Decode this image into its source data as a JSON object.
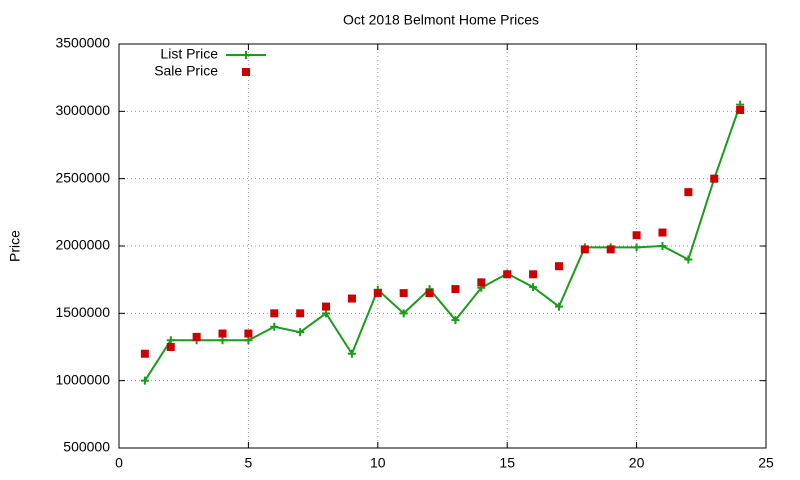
{
  "chart_data": {
    "type": "line",
    "title": "Oct 2018 Belmont Home Prices",
    "y_label": "Price",
    "x": [
      1,
      2,
      3,
      4,
      5,
      6,
      7,
      8,
      9,
      10,
      11,
      12,
      13,
      14,
      15,
      16,
      17,
      18,
      19,
      20,
      21,
      22,
      23,
      24
    ],
    "series": [
      {
        "name": "List Price",
        "color": "#1a9c1a",
        "marker": "plus",
        "line": true,
        "values": [
          1000000,
          1300000,
          1300000,
          1300000,
          1300000,
          1400000,
          1360000,
          1500000,
          1200000,
          1675000,
          1500000,
          1680000,
          1450000,
          1690000,
          1795000,
          1695000,
          1550000,
          1990000,
          1990000,
          1990000,
          2000000,
          1900000,
          2500000,
          3050000
        ]
      },
      {
        "name": "Sale Price",
        "color": "#cc0000",
        "marker": "square",
        "line": false,
        "values": [
          1200000,
          1250000,
          1325000,
          1350000,
          1350000,
          1500000,
          1500000,
          1550000,
          1610000,
          1650000,
          1650000,
          1650000,
          1680000,
          1730000,
          1790000,
          1790000,
          1850000,
          1975000,
          1975000,
          2080000,
          2100000,
          2400000,
          2500000,
          3010000
        ]
      }
    ],
    "xlim": [
      0,
      25
    ],
    "xticks": [
      0,
      5,
      10,
      15,
      20,
      25
    ],
    "ylim": [
      500000,
      3500000
    ],
    "yticks": [
      500000,
      1000000,
      1500000,
      2000000,
      2500000,
      3000000,
      3500000
    ],
    "grid": true,
    "legend": "top-left"
  }
}
